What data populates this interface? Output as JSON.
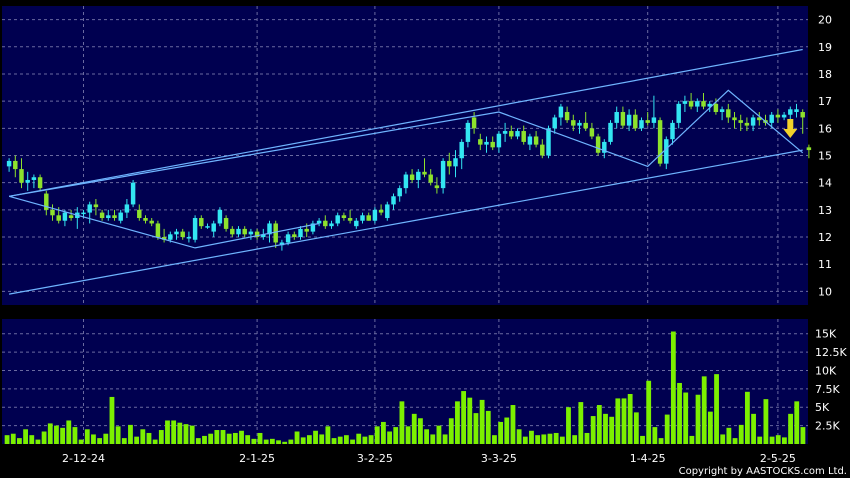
{
  "copyright": "Copyright by AASTOCKS.com Ltd.",
  "colors": {
    "background": "#000000",
    "plot_bg": "#000050",
    "grid": "#6a6aa0",
    "up": "#33e6f2",
    "down": "#8ee22c",
    "volume": "#7cf000",
    "trendline": "#6fb4ff",
    "signal_arrow": "#f2d22a"
  },
  "chart_data": [
    {
      "type": "candlestick",
      "title": "",
      "xlabel": "",
      "ylabel": "",
      "ylim": [
        9.5,
        20.5
      ],
      "y_ticks": [
        "10",
        "11",
        "12",
        "13",
        "14",
        "15",
        "16",
        "17",
        "18",
        "19",
        "20"
      ],
      "x_tick_labels": [
        "2-12-24",
        "2-1-25",
        "3-2-25",
        "3-3-25",
        "1-4-25",
        "2-5-25"
      ],
      "x_tick_index": [
        12,
        40,
        59,
        79,
        103,
        124
      ],
      "grid": true,
      "ohlc": [
        [
          14.6,
          14.9,
          14.4,
          14.8
        ],
        [
          14.8,
          15.0,
          14.2,
          14.5
        ],
        [
          14.5,
          14.9,
          13.8,
          14.0
        ],
        [
          14.0,
          14.4,
          13.7,
          14.1
        ],
        [
          14.1,
          14.3,
          13.8,
          14.2
        ],
        [
          14.2,
          14.3,
          13.7,
          13.8
        ],
        [
          13.6,
          13.7,
          12.8,
          13.0
        ],
        [
          13.0,
          13.2,
          12.6,
          12.8
        ],
        [
          12.8,
          13.1,
          12.5,
          12.6
        ],
        [
          12.6,
          13.0,
          12.4,
          12.9
        ],
        [
          12.8,
          13.0,
          12.6,
          12.7
        ],
        [
          12.7,
          13.1,
          12.3,
          12.9
        ],
        [
          12.9,
          13.0,
          12.7,
          12.9
        ],
        [
          12.9,
          13.3,
          12.5,
          13.2
        ],
        [
          13.2,
          13.4,
          12.8,
          13.1
        ],
        [
          12.9,
          13.0,
          12.6,
          12.7
        ],
        [
          12.7,
          13.0,
          12.6,
          12.8
        ],
        [
          12.8,
          13.0,
          12.6,
          12.7
        ],
        [
          12.6,
          13.0,
          12.5,
          12.9
        ],
        [
          12.9,
          13.4,
          12.7,
          13.2
        ],
        [
          13.2,
          14.1,
          13.1,
          14.0
        ],
        [
          13.0,
          13.2,
          12.6,
          12.7
        ],
        [
          12.7,
          12.8,
          12.5,
          12.6
        ],
        [
          12.6,
          12.7,
          12.4,
          12.5
        ],
        [
          12.5,
          12.6,
          11.9,
          12.0
        ],
        [
          12.0,
          12.3,
          11.8,
          11.9
        ],
        [
          11.9,
          12.2,
          11.8,
          12.1
        ],
        [
          12.1,
          12.3,
          11.9,
          12.2
        ],
        [
          12.2,
          12.3,
          11.9,
          12.0
        ],
        [
          12.0,
          12.2,
          11.8,
          12.0
        ],
        [
          11.9,
          12.8,
          11.8,
          12.7
        ],
        [
          12.7,
          12.8,
          12.3,
          12.4
        ],
        [
          12.4,
          12.5,
          12.3,
          12.4
        ],
        [
          12.2,
          12.6,
          12.0,
          12.5
        ],
        [
          12.5,
          13.1,
          12.4,
          13.0
        ],
        [
          12.7,
          12.8,
          12.2,
          12.3
        ],
        [
          12.3,
          12.4,
          12.0,
          12.1
        ],
        [
          12.1,
          12.4,
          12.0,
          12.3
        ],
        [
          12.3,
          12.4,
          12.0,
          12.1
        ],
        [
          12.1,
          12.3,
          11.9,
          12.2
        ],
        [
          12.2,
          12.3,
          11.9,
          12.0
        ],
        [
          12.0,
          12.3,
          11.9,
          12.1
        ],
        [
          12.1,
          12.6,
          11.8,
          12.5
        ],
        [
          12.5,
          12.6,
          11.6,
          11.8
        ],
        [
          11.7,
          11.9,
          11.5,
          11.8
        ],
        [
          11.8,
          12.2,
          11.7,
          12.1
        ],
        [
          12.1,
          12.2,
          11.9,
          12.0
        ],
        [
          12.0,
          12.4,
          11.9,
          12.3
        ],
        [
          12.3,
          12.5,
          12.0,
          12.2
        ],
        [
          12.2,
          12.6,
          12.1,
          12.5
        ],
        [
          12.5,
          12.7,
          12.4,
          12.6
        ],
        [
          12.6,
          12.8,
          12.3,
          12.4
        ],
        [
          12.4,
          12.6,
          12.3,
          12.5
        ],
        [
          12.5,
          12.9,
          12.4,
          12.8
        ],
        [
          12.8,
          12.9,
          12.6,
          12.7
        ],
        [
          12.7,
          13.0,
          12.5,
          12.6
        ],
        [
          12.4,
          12.7,
          12.3,
          12.6
        ],
        [
          12.6,
          12.9,
          12.5,
          12.8
        ],
        [
          12.8,
          12.9,
          12.6,
          12.6
        ],
        [
          12.6,
          13.1,
          12.5,
          13.0
        ],
        [
          13.0,
          13.2,
          12.8,
          12.9
        ],
        [
          12.7,
          13.3,
          12.6,
          13.2
        ],
        [
          13.2,
          13.6,
          13.0,
          13.5
        ],
        [
          13.5,
          13.9,
          13.3,
          13.8
        ],
        [
          13.8,
          14.4,
          13.6,
          14.3
        ],
        [
          14.3,
          14.5,
          14.0,
          14.1
        ],
        [
          14.1,
          14.5,
          13.8,
          14.4
        ],
        [
          14.4,
          14.9,
          14.2,
          14.3
        ],
        [
          14.3,
          14.5,
          13.9,
          14.0
        ],
        [
          13.9,
          14.2,
          13.6,
          13.8
        ],
        [
          13.8,
          14.9,
          13.6,
          14.8
        ],
        [
          14.8,
          15.1,
          14.3,
          14.6
        ],
        [
          14.6,
          15.2,
          14.2,
          14.9
        ],
        [
          14.9,
          15.6,
          14.5,
          15.5
        ],
        [
          15.5,
          16.3,
          15.3,
          16.2
        ],
        [
          16.4,
          16.6,
          15.8,
          16.0
        ],
        [
          15.6,
          15.8,
          15.2,
          15.4
        ],
        [
          15.4,
          15.7,
          15.1,
          15.5
        ],
        [
          15.5,
          15.7,
          15.2,
          15.3
        ],
        [
          15.3,
          15.9,
          15.1,
          15.8
        ],
        [
          15.8,
          16.2,
          15.5,
          15.9
        ],
        [
          15.9,
          16.1,
          15.6,
          15.7
        ],
        [
          15.7,
          16.0,
          15.6,
          15.9
        ],
        [
          15.9,
          16.1,
          15.4,
          15.5
        ],
        [
          15.4,
          15.8,
          15.2,
          15.7
        ],
        [
          15.7,
          15.9,
          15.3,
          15.4
        ],
        [
          15.4,
          15.6,
          14.9,
          15.0
        ],
        [
          15.0,
          16.1,
          14.9,
          16.0
        ],
        [
          16.0,
          16.5,
          15.8,
          16.4
        ],
        [
          16.4,
          16.9,
          16.1,
          16.8
        ],
        [
          16.6,
          16.8,
          16.2,
          16.3
        ],
        [
          16.3,
          16.5,
          15.9,
          16.1
        ],
        [
          16.1,
          16.3,
          15.8,
          16.2
        ],
        [
          16.2,
          16.6,
          15.9,
          16.0
        ],
        [
          16.0,
          16.2,
          15.6,
          15.7
        ],
        [
          15.7,
          15.8,
          15.0,
          15.1
        ],
        [
          15.1,
          15.6,
          14.9,
          15.5
        ],
        [
          15.5,
          16.3,
          15.4,
          16.2
        ],
        [
          16.2,
          16.8,
          16.0,
          16.6
        ],
        [
          16.6,
          16.8,
          16.0,
          16.1
        ],
        [
          16.1,
          16.7,
          15.9,
          16.5
        ],
        [
          16.5,
          16.7,
          15.9,
          16.0
        ],
        [
          16.0,
          16.4,
          15.9,
          16.3
        ],
        [
          16.3,
          16.6,
          16.1,
          16.2
        ],
        [
          16.2,
          17.2,
          16.0,
          16.4
        ],
        [
          16.3,
          16.4,
          14.6,
          14.7
        ],
        [
          14.7,
          15.7,
          14.5,
          15.6
        ],
        [
          15.6,
          16.3,
          15.4,
          16.2
        ],
        [
          16.2,
          17.0,
          16.0,
          16.9
        ],
        [
          16.9,
          17.2,
          16.6,
          17.0
        ],
        [
          17.0,
          17.3,
          16.7,
          16.8
        ],
        [
          16.8,
          17.1,
          16.6,
          17.0
        ],
        [
          17.0,
          17.3,
          16.7,
          16.8
        ],
        [
          16.8,
          17.0,
          16.6,
          16.9
        ],
        [
          16.9,
          17.1,
          16.5,
          16.6
        ],
        [
          16.6,
          16.8,
          16.3,
          16.7
        ],
        [
          16.7,
          16.9,
          16.2,
          16.4
        ],
        [
          16.4,
          16.6,
          16.0,
          16.3
        ],
        [
          16.3,
          16.5,
          15.9,
          16.2
        ],
        [
          16.2,
          16.4,
          15.9,
          16.1
        ],
        [
          16.1,
          16.5,
          15.9,
          16.4
        ],
        [
          16.4,
          16.6,
          16.1,
          16.3
        ],
        [
          16.3,
          16.5,
          16.1,
          16.2
        ],
        [
          16.2,
          16.6,
          16.0,
          16.5
        ],
        [
          16.5,
          16.7,
          16.2,
          16.4
        ],
        [
          16.4,
          16.6,
          16.3,
          16.5
        ],
        [
          16.5,
          16.8,
          16.3,
          16.7
        ],
        [
          16.6,
          16.9,
          16.4,
          16.7
        ],
        [
          16.6,
          16.7,
          15.8,
          16.4
        ],
        [
          15.3,
          15.4,
          14.9,
          15.2
        ]
      ],
      "trendlines": [
        [
          [
            0,
            13.5
          ],
          [
            79,
            16.6
          ],
          [
            103,
            14.6
          ],
          [
            116,
            17.4
          ],
          [
            128,
            15.1
          ]
        ],
        [
          [
            0,
            13.5
          ],
          [
            30,
            11.6
          ],
          [
            50,
            12.5
          ]
        ],
        [
          [
            0,
            13.5
          ],
          [
            128,
            18.9
          ]
        ],
        [
          [
            0,
            9.9
          ],
          [
            128,
            15.2
          ]
        ]
      ],
      "signal_arrow": {
        "index": 126,
        "price": 15.9
      }
    },
    {
      "type": "bar",
      "title": "",
      "xlabel": "",
      "ylabel": "",
      "ylim": [
        0,
        17000
      ],
      "y_ticks": [
        "2.5K",
        "5K",
        "7.5K",
        "10K",
        "12.5K",
        "15K"
      ],
      "volumes": [
        1200,
        1400,
        800,
        2000,
        1200,
        600,
        1700,
        2800,
        2500,
        2200,
        3200,
        2300,
        600,
        2000,
        1300,
        800,
        1400,
        6400,
        2400,
        800,
        2600,
        1000,
        2000,
        1500,
        600,
        1900,
        3200,
        3200,
        2900,
        2700,
        2500,
        800,
        1100,
        1400,
        1900,
        1900,
        1400,
        1500,
        1800,
        1200,
        700,
        1500,
        600,
        700,
        500,
        300,
        600,
        1700,
        900,
        1200,
        1800,
        1300,
        2400,
        800,
        1000,
        1200,
        600,
        1400,
        1000,
        1200,
        2400,
        3000,
        1700,
        2300,
        5800,
        2400,
        4100,
        3500,
        2000,
        1300,
        2500,
        1300,
        3500,
        5800,
        7200,
        6300,
        4200,
        6000,
        4500,
        1200,
        3000,
        3600,
        5300,
        2000,
        1000,
        1800,
        1200,
        1300,
        1400,
        1500,
        1000,
        5000,
        1200,
        5700,
        1500,
        3800,
        5300,
        4100,
        3700,
        6200,
        6200,
        6800,
        4300,
        1100,
        8600,
        2300,
        800,
        4000,
        15300,
        8300,
        7000,
        1100,
        6700,
        9200,
        4400,
        9500,
        1300,
        2200,
        800,
        2600,
        7100,
        4100,
        1000,
        6100,
        1000,
        1200,
        900,
        4100,
        5800,
        2300
      ]
    }
  ]
}
